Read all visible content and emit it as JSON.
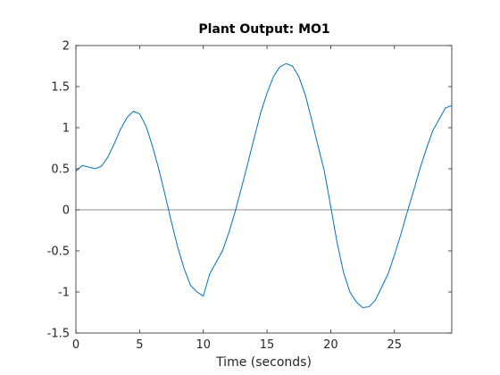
{
  "chart_data": {
    "type": "line",
    "title": "Plant Output:  MO1",
    "xlabel": "Time (seconds)",
    "ylabel": "",
    "xlim": [
      0,
      29.5
    ],
    "ylim": [
      -1.5,
      2
    ],
    "xticks": [
      0,
      5,
      10,
      15,
      20,
      25
    ],
    "yticks": [
      -1.5,
      -1,
      -0.5,
      0,
      0.5,
      1,
      1.5,
      2
    ],
    "xtick_labels": [
      "0",
      "5",
      "10",
      "15",
      "20",
      "25"
    ],
    "ytick_labels": [
      "-1.5",
      "-1",
      "-0.5",
      "0",
      "0.5",
      "1",
      "1.5",
      "2"
    ],
    "grid": false,
    "reference_line": {
      "y": 0,
      "color": "#8c8c8c"
    },
    "series_color": "#0072bd",
    "series": [
      {
        "name": "",
        "x": [
          0,
          0.5,
          1,
          1.5,
          2,
          2.5,
          3,
          3.5,
          4,
          4.5,
          5,
          5.5,
          6,
          6.5,
          7,
          7.5,
          8,
          8.5,
          9,
          9.5,
          10,
          10.5,
          11,
          11.5,
          12,
          12.5,
          13,
          13.5,
          14,
          14.5,
          15,
          15.5,
          16,
          16.5,
          17,
          17.5,
          18,
          18.5,
          19,
          19.5,
          20,
          20.5,
          21,
          21.5,
          22,
          22.5,
          23,
          23.5,
          24,
          24.5,
          25,
          25.5,
          26,
          26.5,
          27,
          27.5,
          28,
          28.5,
          29,
          29.5
        ],
        "values": [
          0.47,
          0.54,
          0.52,
          0.5,
          0.53,
          0.64,
          0.8,
          0.98,
          1.12,
          1.2,
          1.17,
          1.02,
          0.78,
          0.5,
          0.18,
          -0.15,
          -0.46,
          -0.72,
          -0.92,
          -1.0,
          -1.05,
          -0.78,
          -0.64,
          -0.5,
          -0.28,
          -0.02,
          0.27,
          0.57,
          0.88,
          1.18,
          1.42,
          1.62,
          1.74,
          1.78,
          1.75,
          1.62,
          1.4,
          1.1,
          0.78,
          0.47,
          0.04,
          -0.4,
          -0.76,
          -1.0,
          -1.12,
          -1.19,
          -1.18,
          -1.1,
          -0.94,
          -0.78,
          -0.55,
          -0.3,
          -0.03,
          0.23,
          0.5,
          0.74,
          0.96,
          1.1,
          1.24,
          1.27
        ]
      }
    ]
  }
}
